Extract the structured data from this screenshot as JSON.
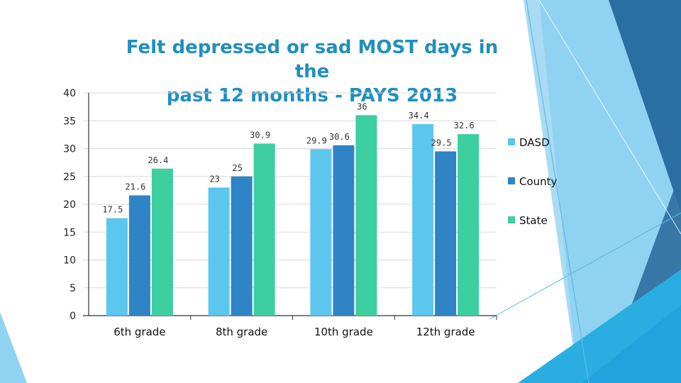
{
  "chart_data": {
    "type": "bar",
    "title_lines": [
      "Felt depressed or sad MOST days in the",
      "past 12 months -  PAYS 2013"
    ],
    "categories": [
      "6th grade",
      "8th grade",
      "10th grade",
      "12th grade"
    ],
    "series": [
      {
        "name": "DASD",
        "color": "#5bc6ee",
        "values": [
          17.5,
          23,
          29.9,
          34.4
        ]
      },
      {
        "name": "County",
        "color": "#2f84c6",
        "values": [
          21.6,
          25,
          30.6,
          29.5
        ]
      },
      {
        "name": "State",
        "color": "#3dcf9f",
        "values": [
          26.4,
          30.9,
          36,
          32.6
        ]
      }
    ],
    "ylim": [
      0,
      40
    ],
    "yticks": [
      0,
      5,
      10,
      15,
      20,
      25,
      30,
      35,
      40
    ],
    "grid": true,
    "legend_position": "right",
    "xlabel": "",
    "ylabel": ""
  }
}
